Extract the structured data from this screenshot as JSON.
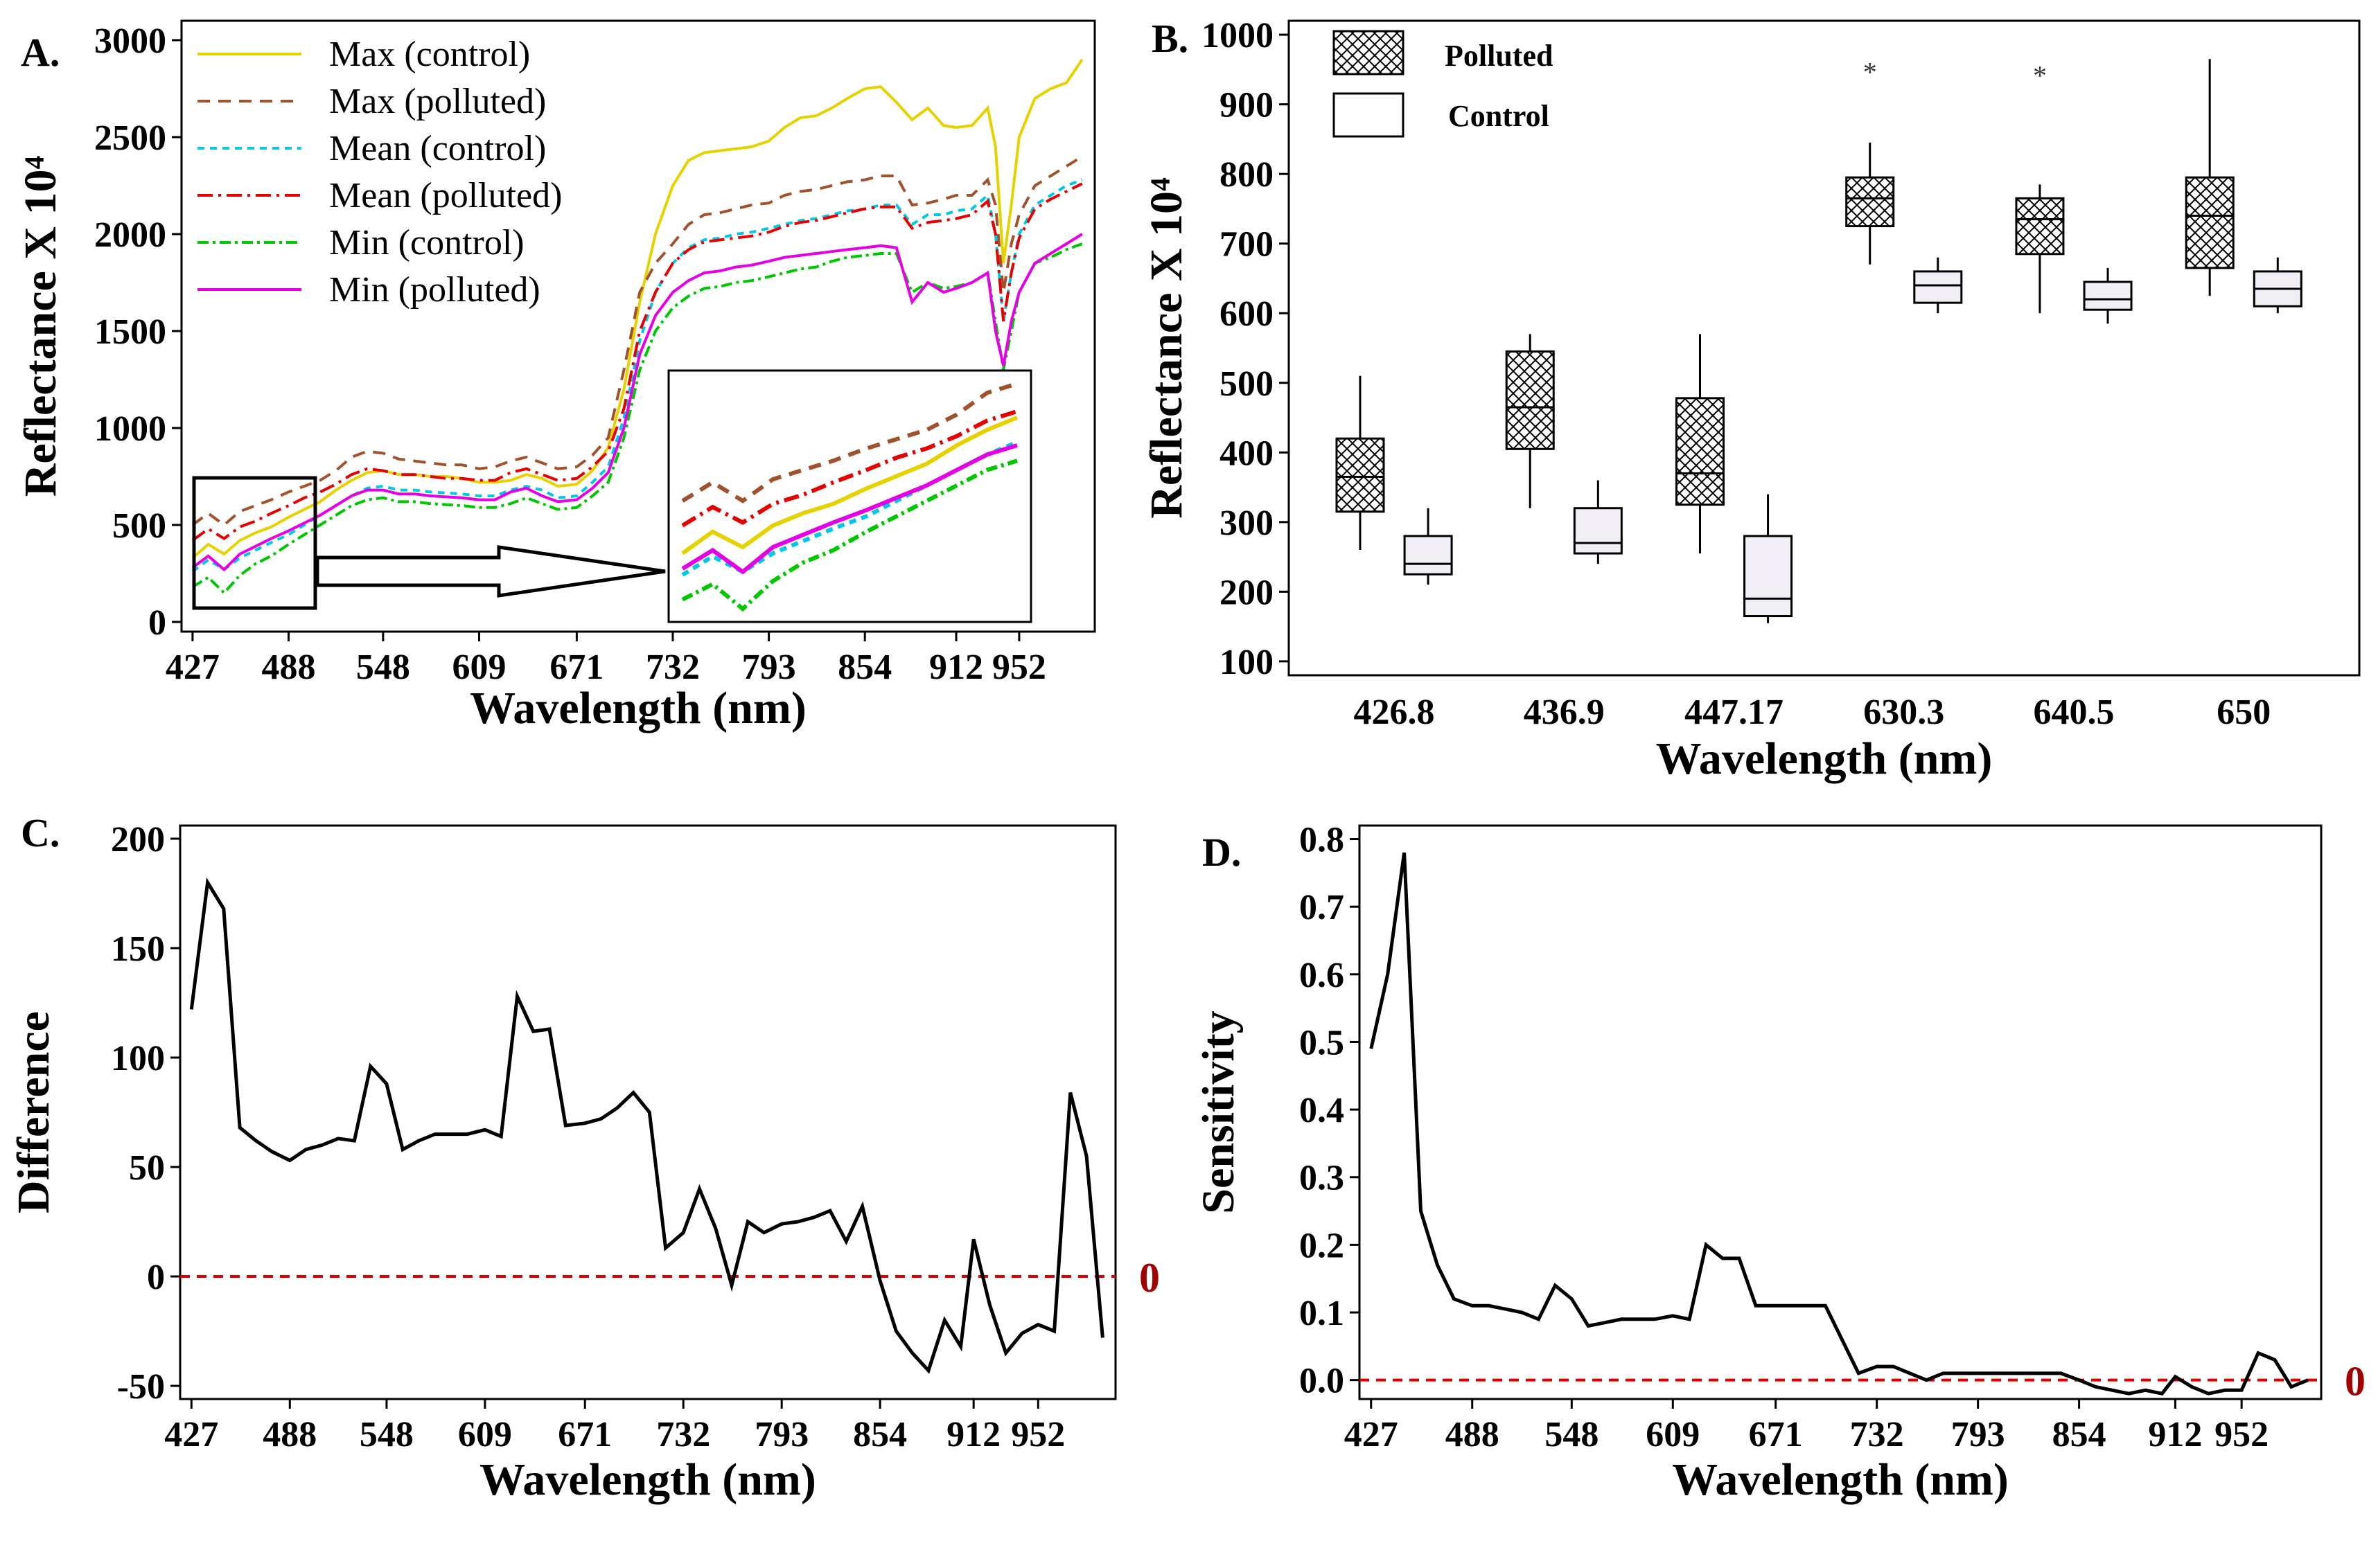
{
  "panels": [
    {
      "label": "A.",
      "type": "line",
      "xlabel": "Wavelength (nm)",
      "ylabel": "Reflectance X 10⁴",
      "xlim": [
        420,
        1000
      ],
      "ylim": [
        -50,
        3100
      ],
      "xticks": [
        427,
        488,
        548,
        609,
        671,
        732,
        793,
        854,
        912,
        952
      ],
      "yticks": [
        0,
        500,
        1000,
        1500,
        2000,
        2500,
        3000
      ],
      "x": [
        427,
        437,
        447,
        457,
        467,
        477,
        488,
        498,
        508,
        518,
        528,
        538,
        548,
        558,
        568,
        578,
        588,
        598,
        609,
        619,
        629,
        639,
        649,
        659,
        671,
        681,
        691,
        701,
        711,
        721,
        732,
        742,
        752,
        762,
        772,
        782,
        793,
        803,
        813,
        823,
        833,
        843,
        854,
        864,
        874,
        884,
        894,
        904,
        912,
        922,
        932,
        937,
        942,
        947,
        952,
        962,
        972,
        982,
        992
      ],
      "series": [
        {
          "name": "Max (control)",
          "color": "#e6d200",
          "dash": "",
          "values": [
            330,
            400,
            350,
            420,
            460,
            490,
            540,
            580,
            620,
            680,
            730,
            770,
            780,
            760,
            760,
            750,
            750,
            740,
            720,
            720,
            730,
            760,
            740,
            700,
            710,
            780,
            900,
            1200,
            1650,
            2000,
            2250,
            2380,
            2420,
            2430,
            2440,
            2450,
            2480,
            2550,
            2600,
            2610,
            2650,
            2700,
            2750,
            2760,
            2680,
            2590,
            2650,
            2560,
            2550,
            2560,
            2650,
            2450,
            1850,
            2150,
            2500,
            2700,
            2750,
            2780,
            2900
          ]
        },
        {
          "name": "Max (polluted)",
          "color": "#a0522d",
          "dash": "18,12",
          "values": [
            500,
            560,
            500,
            570,
            600,
            630,
            670,
            700,
            730,
            780,
            850,
            880,
            870,
            840,
            830,
            820,
            810,
            810,
            790,
            800,
            830,
            850,
            820,
            790,
            800,
            860,
            950,
            1300,
            1700,
            1850,
            1950,
            2050,
            2100,
            2110,
            2130,
            2150,
            2160,
            2200,
            2220,
            2230,
            2250,
            2270,
            2280,
            2300,
            2300,
            2150,
            2160,
            2180,
            2200,
            2200,
            2280,
            2150,
            1700,
            1950,
            2100,
            2250,
            2300,
            2350,
            2400
          ]
        },
        {
          "name": "Mean (control)",
          "color": "#00c8e6",
          "dash": "10,8",
          "values": [
            260,
            320,
            270,
            330,
            370,
            410,
            450,
            500,
            550,
            600,
            650,
            690,
            700,
            680,
            680,
            670,
            665,
            660,
            650,
            650,
            680,
            700,
            680,
            640,
            650,
            720,
            800,
            1050,
            1450,
            1700,
            1850,
            1930,
            1970,
            1980,
            2000,
            2010,
            2030,
            2050,
            2070,
            2080,
            2100,
            2120,
            2130,
            2150,
            2150,
            2050,
            2100,
            2100,
            2120,
            2130,
            2200,
            2000,
            1550,
            1800,
            2000,
            2150,
            2200,
            2250,
            2280
          ]
        },
        {
          "name": "Mean (polluted)",
          "color": "#e60000",
          "dash": "22,8,4,8",
          "values": [
            420,
            480,
            430,
            490,
            520,
            560,
            600,
            640,
            670,
            710,
            760,
            790,
            780,
            760,
            760,
            750,
            740,
            740,
            730,
            730,
            770,
            790,
            760,
            730,
            740,
            800,
            880,
            1100,
            1500,
            1700,
            1850,
            1920,
            1960,
            1970,
            1980,
            1990,
            2010,
            2040,
            2060,
            2070,
            2090,
            2110,
            2130,
            2140,
            2140,
            2030,
            2060,
            2070,
            2080,
            2100,
            2170,
            2000,
            1550,
            1800,
            1980,
            2130,
            2180,
            2220,
            2260
          ]
        },
        {
          "name": "Min (control)",
          "color": "#00c800",
          "dash": "16,6,4,6",
          "values": [
            180,
            230,
            150,
            240,
            300,
            340,
            400,
            450,
            500,
            550,
            600,
            630,
            640,
            620,
            620,
            610,
            605,
            600,
            590,
            590,
            610,
            640,
            610,
            580,
            590,
            650,
            720,
            950,
            1300,
            1500,
            1620,
            1680,
            1720,
            1730,
            1750,
            1760,
            1780,
            1800,
            1820,
            1830,
            1860,
            1880,
            1890,
            1900,
            1900,
            1700,
            1750,
            1720,
            1730,
            1750,
            1800,
            1550,
            1300,
            1500,
            1700,
            1850,
            1880,
            1920,
            1950
          ]
        },
        {
          "name": "Min (polluted)",
          "color": "#e600e6",
          "dash": "",
          "values": [
            280,
            340,
            270,
            350,
            390,
            430,
            470,
            510,
            550,
            600,
            650,
            680,
            680,
            660,
            660,
            650,
            645,
            640,
            630,
            630,
            670,
            690,
            650,
            620,
            630,
            690,
            770,
            1000,
            1380,
            1580,
            1700,
            1760,
            1800,
            1810,
            1830,
            1840,
            1860,
            1880,
            1890,
            1900,
            1910,
            1920,
            1930,
            1940,
            1930,
            1650,
            1750,
            1700,
            1720,
            1750,
            1800,
            1500,
            1320,
            1550,
            1700,
            1850,
            1900,
            1950,
            2000
          ]
        }
      ],
      "inset_note": "zoom of 427-500 nm region"
    },
    {
      "label": "B.",
      "type": "box",
      "xlabel": "Wavelength (nm)",
      "ylabel": "Reflectance X 10⁴",
      "ylim": [
        80,
        1020
      ],
      "yticks": [
        100,
        200,
        300,
        400,
        500,
        600,
        700,
        800,
        900,
        1000
      ],
      "categories": [
        "426.8",
        "436.9",
        "447.17",
        "630.3",
        "640.5",
        "650"
      ],
      "legend": [
        "Polluted",
        "Control"
      ],
      "polluted": [
        {
          "whislo": 260,
          "q1": 315,
          "med": 365,
          "q3": 420,
          "whishi": 510,
          "outlier": null
        },
        {
          "whislo": 320,
          "q1": 405,
          "med": 465,
          "q3": 545,
          "whishi": 570,
          "outlier": null
        },
        {
          "whislo": 255,
          "q1": 325,
          "med": 370,
          "q3": 478,
          "whishi": 570,
          "outlier": null
        },
        {
          "whislo": 670,
          "q1": 725,
          "med": 765,
          "q3": 795,
          "whishi": 845,
          "outlier": 955
        },
        {
          "whislo": 600,
          "q1": 685,
          "med": 735,
          "q3": 765,
          "whishi": 785,
          "outlier": 950
        },
        {
          "whislo": 625,
          "q1": 665,
          "med": 740,
          "q3": 795,
          "whishi": 965,
          "outlier": null
        }
      ],
      "control": [
        {
          "whislo": 210,
          "q1": 225,
          "med": 240,
          "q3": 280,
          "whishi": 320
        },
        {
          "whislo": 240,
          "q1": 255,
          "med": 270,
          "q3": 320,
          "whishi": 360
        },
        {
          "whislo": 155,
          "q1": 165,
          "med": 190,
          "q3": 280,
          "whishi": 340
        },
        {
          "whislo": 600,
          "q1": 615,
          "med": 640,
          "q3": 660,
          "whishi": 680
        },
        {
          "whislo": 585,
          "q1": 605,
          "med": 620,
          "q3": 645,
          "whishi": 665
        },
        {
          "whislo": 600,
          "q1": 610,
          "med": 635,
          "q3": 660,
          "whishi": 680
        }
      ]
    },
    {
      "label": "C.",
      "type": "line",
      "xlabel": "Wavelength (nm)",
      "ylabel": "Difference",
      "xlim": [
        420,
        1000
      ],
      "ylim": [
        -56,
        206
      ],
      "xticks": [
        427,
        488,
        548,
        609,
        671,
        732,
        793,
        854,
        912,
        952
      ],
      "yticks": [
        -50,
        0,
        50,
        100,
        150,
        200
      ],
      "reference_line": 0,
      "reference_label": "0",
      "x": [
        427,
        437,
        447,
        457,
        467,
        477,
        488,
        498,
        508,
        518,
        528,
        538,
        548,
        558,
        568,
        578,
        588,
        598,
        609,
        619,
        629,
        639,
        649,
        659,
        671,
        681,
        691,
        701,
        711,
        721,
        732,
        742,
        752,
        762,
        772,
        782,
        793,
        803,
        813,
        823,
        833,
        843,
        854,
        864,
        874,
        884,
        894,
        904,
        912,
        922,
        932,
        942,
        952,
        962,
        972,
        982,
        992
      ],
      "values": [
        122,
        180,
        168,
        68,
        62,
        57,
        53,
        58,
        60,
        63,
        62,
        96,
        88,
        58,
        62,
        65,
        65,
        65,
        67,
        64,
        128,
        112,
        113,
        69,
        70,
        72,
        77,
        84,
        75,
        13,
        20,
        40,
        22,
        -4,
        25,
        20,
        24,
        25,
        27,
        30,
        16,
        32,
        -2,
        -25,
        -35,
        -43,
        -20,
        -32,
        17,
        -13,
        -35,
        -26,
        -22,
        -25,
        84,
        55,
        -28
      ]
    },
    {
      "label": "D.",
      "type": "line",
      "xlabel": "Wavelength (nm)",
      "ylabel": "Sensitivity",
      "xlim": [
        420,
        1000
      ],
      "ylim": [
        -0.028,
        0.82
      ],
      "xticks": [
        427,
        488,
        548,
        609,
        671,
        732,
        793,
        854,
        912,
        952
      ],
      "yticks": [
        0.0,
        0.1,
        0.2,
        0.3,
        0.4,
        0.5,
        0.6,
        0.7,
        0.8
      ],
      "reference_line": 0,
      "reference_label": "0",
      "x": [
        427,
        437,
        447,
        457,
        467,
        477,
        488,
        498,
        508,
        518,
        528,
        538,
        548,
        558,
        568,
        578,
        588,
        598,
        609,
        619,
        629,
        639,
        649,
        659,
        671,
        681,
        691,
        701,
        711,
        721,
        732,
        742,
        752,
        762,
        772,
        782,
        793,
        803,
        813,
        823,
        833,
        843,
        854,
        864,
        874,
        884,
        894,
        904,
        912,
        922,
        932,
        942,
        952,
        962,
        972,
        982,
        992
      ],
      "values": [
        0.49,
        0.6,
        0.78,
        0.25,
        0.17,
        0.12,
        0.11,
        0.11,
        0.105,
        0.1,
        0.09,
        0.14,
        0.12,
        0.08,
        0.085,
        0.09,
        0.09,
        0.09,
        0.095,
        0.09,
        0.2,
        0.18,
        0.18,
        0.11,
        0.11,
        0.11,
        0.11,
        0.11,
        0.06,
        0.01,
        0.02,
        0.02,
        0.01,
        0.0,
        0.01,
        0.01,
        0.01,
        0.01,
        0.01,
        0.01,
        0.01,
        0.01,
        0.0,
        -0.01,
        -0.015,
        -0.02,
        -0.015,
        -0.02,
        0.005,
        -0.01,
        -0.02,
        -0.015,
        -0.015,
        0.04,
        0.03,
        -0.01,
        0.0
      ]
    }
  ]
}
